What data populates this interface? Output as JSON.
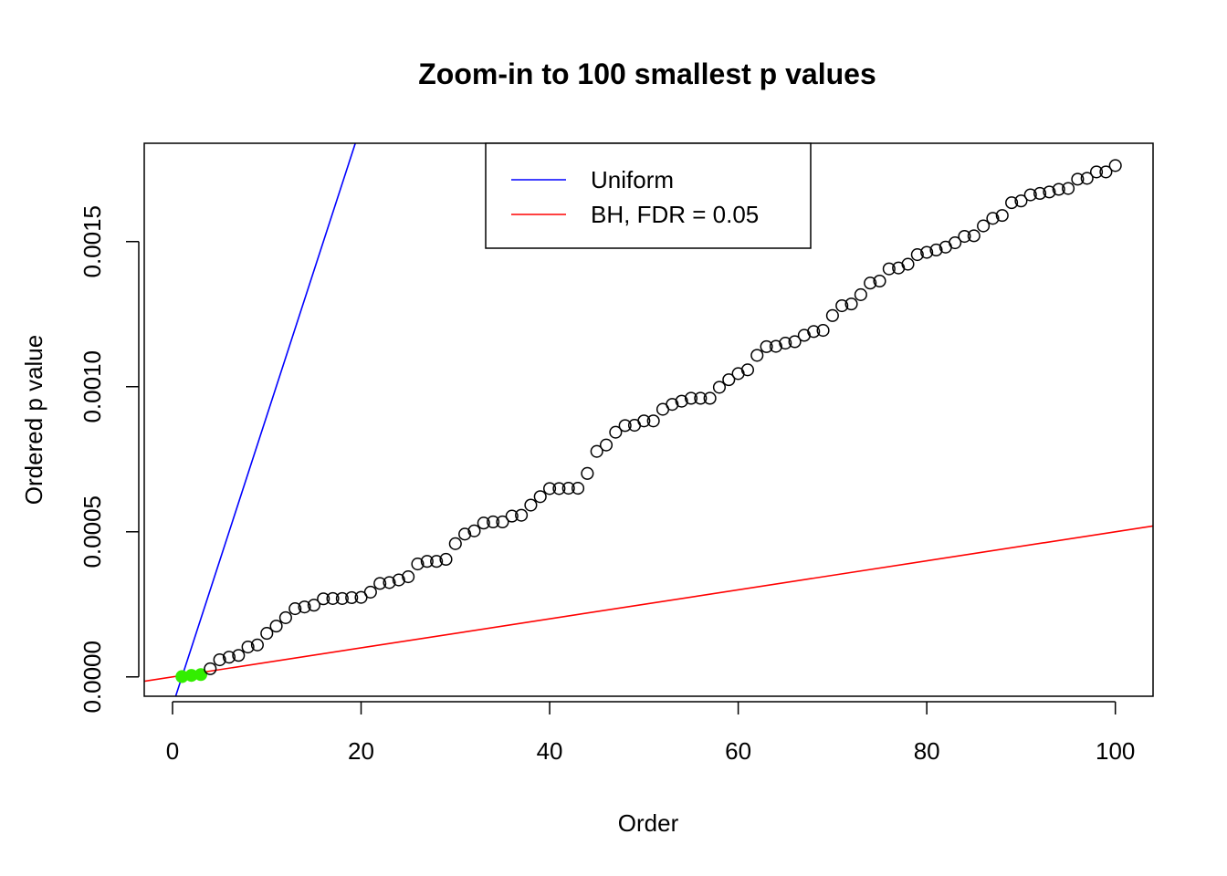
{
  "chart_data": {
    "type": "scatter",
    "title": "Zoom-in to 100 smallest p values",
    "xlabel": "Order",
    "ylabel": "Ordered p value",
    "xlim": [
      -3,
      104
    ],
    "ylim": [
      -6.67e-05,
      0.0018388
    ],
    "x_ticks": [
      0,
      20,
      40,
      60,
      80,
      100
    ],
    "x_tick_labels": [
      "0",
      "20",
      "40",
      "60",
      "80",
      "100"
    ],
    "y_ticks": [
      0,
      0.0005,
      0.001,
      0.0015
    ],
    "y_tick_labels": [
      "0.0000",
      "0.0005",
      "0.0010",
      "0.0015"
    ],
    "grid": false,
    "legend": {
      "position": "top-center",
      "entries": [
        {
          "label": "Uniform",
          "color": "#0000ff"
        },
        {
          "label": "BH, FDR = 0.05",
          "color": "#ff0000"
        }
      ]
    },
    "lines": [
      {
        "name": "Uniform",
        "slope": 0.0001,
        "intercept": -0.0001,
        "color": "#0000ff"
      },
      {
        "name": "BH, FDR = 0.05",
        "slope": 5e-06,
        "intercept": 0,
        "color": "#ff0000"
      }
    ],
    "highlight_color": "#33ee00",
    "series": [
      {
        "name": "p values",
        "x": [
          1,
          2,
          3,
          4,
          5,
          6,
          7,
          8,
          9,
          10,
          11,
          12,
          13,
          14,
          15,
          16,
          17,
          18,
          19,
          20,
          21,
          22,
          23,
          24,
          25,
          26,
          27,
          28,
          29,
          30,
          31,
          32,
          33,
          34,
          35,
          36,
          37,
          38,
          39,
          40,
          41,
          42,
          43,
          44,
          45,
          46,
          47,
          48,
          49,
          50,
          51,
          52,
          53,
          54,
          55,
          56,
          57,
          58,
          59,
          60,
          61,
          62,
          63,
          64,
          65,
          66,
          67,
          68,
          69,
          70,
          71,
          72,
          73,
          74,
          75,
          76,
          77,
          78,
          79,
          80,
          81,
          82,
          83,
          84,
          85,
          86,
          87,
          88,
          89,
          90,
          91,
          92,
          93,
          94,
          95,
          96,
          97,
          98,
          99,
          100
        ],
        "values": [
          1e-06,
          5e-06,
          8e-06,
          2.8e-05,
          5.9e-05,
          6.8e-05,
          7.4e-05,
          0.000103,
          0.00011,
          0.00015,
          0.000175,
          0.000204,
          0.000235,
          0.000241,
          0.000247,
          0.000269,
          0.00027,
          0.00027,
          0.000273,
          0.000274,
          0.000292,
          0.000322,
          0.000325,
          0.000334,
          0.000345,
          0.000389,
          0.000398,
          0.000398,
          0.000405,
          0.000459,
          0.000492,
          0.000503,
          0.00053,
          0.000534,
          0.000534,
          0.000554,
          0.000557,
          0.000592,
          0.000621,
          0.000649,
          0.000649,
          0.00065,
          0.00065,
          0.000701,
          0.000777,
          0.000799,
          0.000843,
          0.000866,
          0.000867,
          0.000882,
          0.000882,
          0.000922,
          0.000939,
          0.00095,
          0.00096,
          0.00096,
          0.00096,
          0.000998,
          0.001024,
          0.001045,
          0.001058,
          0.001108,
          0.001138,
          0.001139,
          0.00115,
          0.001155,
          0.001177,
          0.00119,
          0.001194,
          0.001245,
          0.001279,
          0.001285,
          0.001317,
          0.001357,
          0.001364,
          0.001406,
          0.001409,
          0.001422,
          0.001455,
          0.001463,
          0.001471,
          0.001481,
          0.001496,
          0.001518,
          0.00152,
          0.001554,
          0.00158,
          0.00159,
          0.001634,
          0.00164,
          0.001661,
          0.001666,
          0.001671,
          0.00168,
          0.001683,
          0.001715,
          0.001718,
          0.00174,
          0.00174,
          0.001762
        ],
        "significant": [
          true,
          true,
          true,
          false,
          false,
          false,
          false,
          false,
          false,
          false,
          false,
          false,
          false,
          false,
          false,
          false,
          false,
          false,
          false,
          false,
          false,
          false,
          false,
          false,
          false,
          false,
          false,
          false,
          false,
          false,
          false,
          false,
          false,
          false,
          false,
          false,
          false,
          false,
          false,
          false,
          false,
          false,
          false,
          false,
          false,
          false,
          false,
          false,
          false,
          false,
          false,
          false,
          false,
          false,
          false,
          false,
          false,
          false,
          false,
          false,
          false,
          false,
          false,
          false,
          false,
          false,
          false,
          false,
          false,
          false,
          false,
          false,
          false,
          false,
          false,
          false,
          false,
          false,
          false,
          false,
          false,
          false,
          false,
          false,
          false,
          false,
          false,
          false,
          false,
          false,
          false,
          false,
          false,
          false,
          false,
          false,
          false,
          false,
          false,
          false
        ]
      }
    ]
  }
}
